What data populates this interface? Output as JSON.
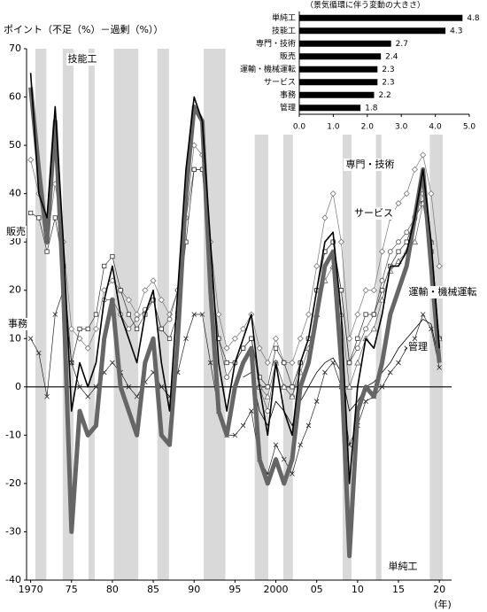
{
  "chart_data": [
    {
      "type": "line",
      "y_label": "ポイント（不足（%）－過剰（%））",
      "x_label": "(年)",
      "xlim": [
        1969.5,
        2021.5
      ],
      "ylim": [
        -40,
        70
      ],
      "yticks": [
        -40,
        -30,
        -20,
        -10,
        0,
        10,
        20,
        30,
        40,
        50,
        60,
        70
      ],
      "xticks": [
        1970,
        {
          "value": 1975,
          "label": "75"
        },
        {
          "value": 1980,
          "label": "80"
        },
        {
          "value": 1985,
          "label": "85"
        },
        {
          "value": 1990,
          "label": "90"
        },
        {
          "value": 1995,
          "label": "95"
        },
        2000,
        {
          "value": 2005,
          "label": "05"
        },
        {
          "value": 2010,
          "label": "10"
        },
        {
          "value": 2015,
          "label": "15"
        },
        {
          "value": 2020,
          "label": "20"
        }
      ],
      "recessions": [
        [
          1970.58,
          1971.92
        ],
        [
          1973.92,
          1975.25
        ],
        [
          1977.08,
          1977.83
        ],
        [
          1980.17,
          1983.17
        ],
        [
          1985.5,
          1986.92
        ],
        [
          1991.17,
          1993.83
        ],
        [
          1997.42,
          1999.08
        ],
        [
          2000.92,
          2002.08
        ],
        [
          2008.17,
          2009.25
        ],
        [
          2012.25,
          2012.92
        ],
        [
          2018.83,
          2020.42
        ]
      ],
      "x": [
        1970,
        1971,
        1972,
        1973,
        1974,
        1975,
        1976,
        1977,
        1978,
        1979,
        1980,
        1981,
        1982,
        1983,
        1984,
        1985,
        1986,
        1987,
        1988,
        1989,
        1990,
        1991,
        1992,
        1993,
        1994,
        1995,
        1996,
        1997,
        1998,
        1999,
        2000,
        2001,
        2002,
        2003,
        2004,
        2005,
        2006,
        2007,
        2008,
        2009,
        2010,
        2011,
        2012,
        2013,
        2014,
        2015,
        2016,
        2017,
        2018,
        2019,
        2020
      ],
      "series": [
        {
          "name": "専門・技術",
          "color": "#777777",
          "marker": "diamond",
          "line_width": 0.7,
          "values": [
            47,
            40,
            30,
            42,
            30,
            12,
            10,
            8,
            12,
            20,
            22,
            20,
            18,
            15,
            20,
            22,
            18,
            15,
            20,
            35,
            50,
            48,
            30,
            15,
            8,
            10,
            12,
            15,
            8,
            5,
            10,
            5,
            5,
            10,
            15,
            25,
            35,
            40,
            30,
            10,
            15,
            20,
            20,
            28,
            35,
            38,
            40,
            45,
            48,
            40,
            25
          ]
        },
        {
          "name": "サービス",
          "color": "#555555",
          "marker": "circle",
          "line_width": 0.7,
          "values": [
            null,
            null,
            null,
            null,
            null,
            null,
            null,
            null,
            null,
            18,
            18,
            15,
            12,
            14,
            16,
            18,
            12,
            14,
            20,
            35,
            45,
            45,
            25,
            10,
            2,
            5,
            8,
            10,
            0,
            -5,
            5,
            0,
            -2,
            5,
            10,
            20,
            28,
            30,
            20,
            5,
            8,
            12,
            15,
            22,
            28,
            30,
            32,
            35,
            40,
            30,
            10
          ]
        },
        {
          "name": "販売",
          "color": "#333333",
          "marker": "square",
          "line_width": 0.7,
          "values": [
            36,
            35,
            28,
            35,
            25,
            5,
            12,
            12,
            15,
            25,
            27,
            20,
            15,
            12,
            15,
            18,
            12,
            10,
            15,
            30,
            45,
            45,
            25,
            10,
            5,
            5,
            8,
            10,
            2,
            0,
            8,
            5,
            0,
            5,
            10,
            20,
            28,
            30,
            20,
            5,
            10,
            15,
            15,
            20,
            25,
            28,
            30,
            35,
            38,
            28,
            10
          ]
        },
        {
          "name": "運輸・機械運転",
          "color": "#666666",
          "marker": "triangle",
          "line_width": 0.7,
          "values": [
            null,
            null,
            null,
            null,
            null,
            null,
            null,
            null,
            null,
            null,
            null,
            null,
            null,
            null,
            null,
            null,
            null,
            null,
            null,
            null,
            null,
            null,
            null,
            null,
            null,
            null,
            null,
            null,
            0,
            -2,
            5,
            0,
            -2,
            3,
            8,
            15,
            22,
            25,
            15,
            0,
            5,
            10,
            12,
            18,
            24,
            26,
            28,
            30,
            38,
            30,
            10
          ]
        },
        {
          "name": "事務",
          "color": "#222222",
          "marker": "x",
          "line_width": 0.7,
          "values": [
            10,
            7,
            -2,
            15,
            20,
            5,
            0,
            -2,
            0,
            3,
            5,
            3,
            0,
            -2,
            1,
            3,
            0,
            -2,
            3,
            10,
            15,
            15,
            5,
            -5,
            -10,
            -10,
            -8,
            -5,
            -15,
            -18,
            -12,
            -15,
            -18,
            -12,
            -8,
            -3,
            3,
            5,
            0,
            -12,
            -8,
            -3,
            -2,
            0,
            3,
            5,
            8,
            10,
            15,
            12,
            4
          ]
        },
        {
          "name": "管理",
          "color": "#000000",
          "marker": "none",
          "line_width": 0.8,
          "values": [
            null,
            null,
            null,
            null,
            null,
            null,
            null,
            null,
            null,
            null,
            null,
            null,
            null,
            null,
            null,
            null,
            null,
            null,
            null,
            null,
            null,
            null,
            null,
            null,
            null,
            null,
            2,
            3,
            -5,
            -8,
            -3,
            -5,
            -8,
            -3,
            0,
            3,
            5,
            6,
            3,
            -5,
            -3,
            0,
            1,
            3,
            5,
            8,
            10,
            12,
            14,
            13,
            5
          ]
        },
        {
          "name": "単純工",
          "color": "#666666",
          "marker": "none",
          "line_width": 5,
          "values": [
            62,
            45,
            30,
            55,
            20,
            -30,
            -5,
            -10,
            -8,
            10,
            18,
            0,
            -5,
            -10,
            5,
            10,
            -10,
            -12,
            10,
            40,
            58,
            55,
            20,
            -5,
            -10,
            0,
            5,
            8,
            -15,
            -20,
            -15,
            -20,
            -15,
            0,
            5,
            15,
            25,
            28,
            5,
            -35,
            -5,
            0,
            -2,
            5,
            15,
            20,
            25,
            35,
            45,
            25,
            5
          ]
        },
        {
          "name": "技能工",
          "color": "#000000",
          "marker": "none",
          "line_width": 1.6,
          "values": [
            65,
            40,
            35,
            58,
            30,
            -5,
            5,
            0,
            5,
            18,
            25,
            15,
            10,
            5,
            15,
            20,
            5,
            -5,
            20,
            45,
            60,
            55,
            30,
            5,
            -5,
            5,
            10,
            15,
            0,
            -10,
            5,
            -5,
            -10,
            5,
            10,
            20,
            30,
            32,
            15,
            -20,
            0,
            10,
            8,
            15,
            25,
            25,
            28,
            35,
            45,
            30,
            8
          ]
        }
      ]
    },
    {
      "type": "bar",
      "orientation": "horizontal",
      "title": "（景気循環に伴う変動の大きさ）",
      "categories": [
        "単純工",
        "技能工",
        "専門・技術",
        "販売",
        "運輸・機械運転",
        "サービス",
        "事務",
        "管理"
      ],
      "values": [
        4.8,
        4.3,
        2.7,
        2.4,
        2.3,
        2.3,
        2.2,
        1.8
      ],
      "color": "#000000",
      "xlim": [
        0,
        5
      ],
      "xticks": [
        {
          "value": 0,
          "label": "0.0"
        },
        {
          "value": 1,
          "label": "1.0"
        },
        {
          "value": 2,
          "label": "2.0"
        },
        {
          "value": 3,
          "label": "3.0"
        },
        {
          "value": 4,
          "label": "4.0"
        },
        {
          "value": 5,
          "label": "5.0"
        }
      ]
    }
  ]
}
